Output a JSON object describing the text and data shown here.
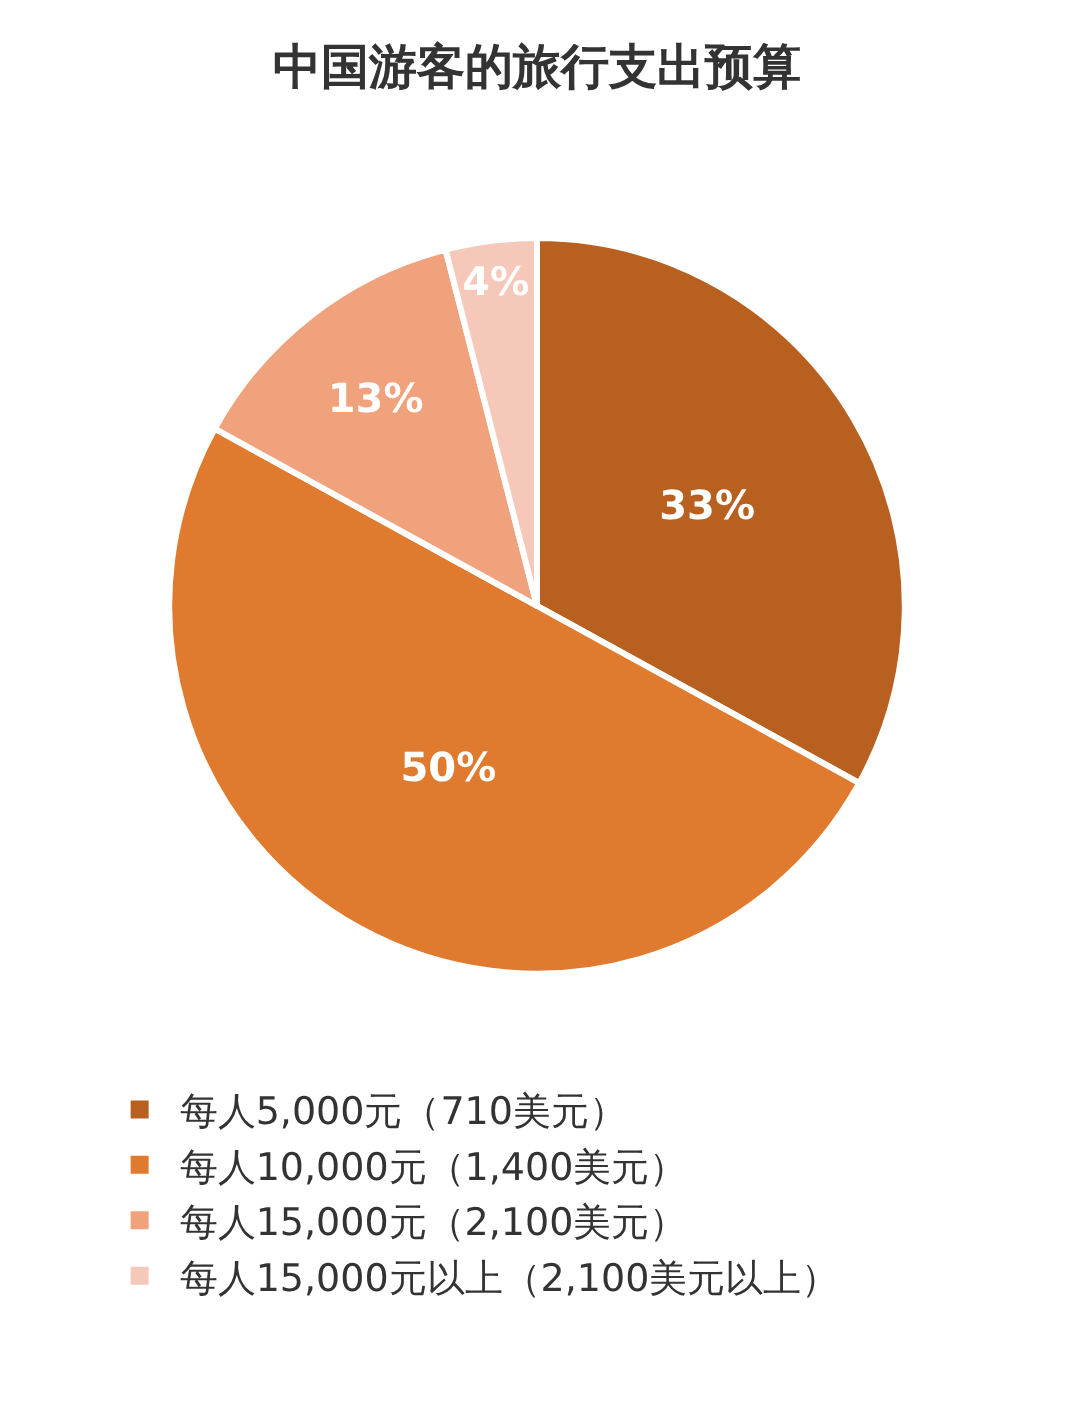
{
  "chart_data": {
    "type": "pie",
    "title": "中国游客的旅行支出预算",
    "categories": [
      "每人5,000元（710美元）",
      "每人10,000元（1,400美元）",
      "每人15,000元（2,100美元）",
      "每人15,000元以上（2,100美元以上）"
    ],
    "values": [
      33,
      50,
      13,
      4
    ],
    "value_labels": [
      "33%",
      "50%",
      "13%",
      "4%"
    ],
    "colors": [
      "#b8601f",
      "#e07a2e",
      "#f0a27c",
      "#f6c8b9"
    ],
    "legend": "bottom"
  }
}
